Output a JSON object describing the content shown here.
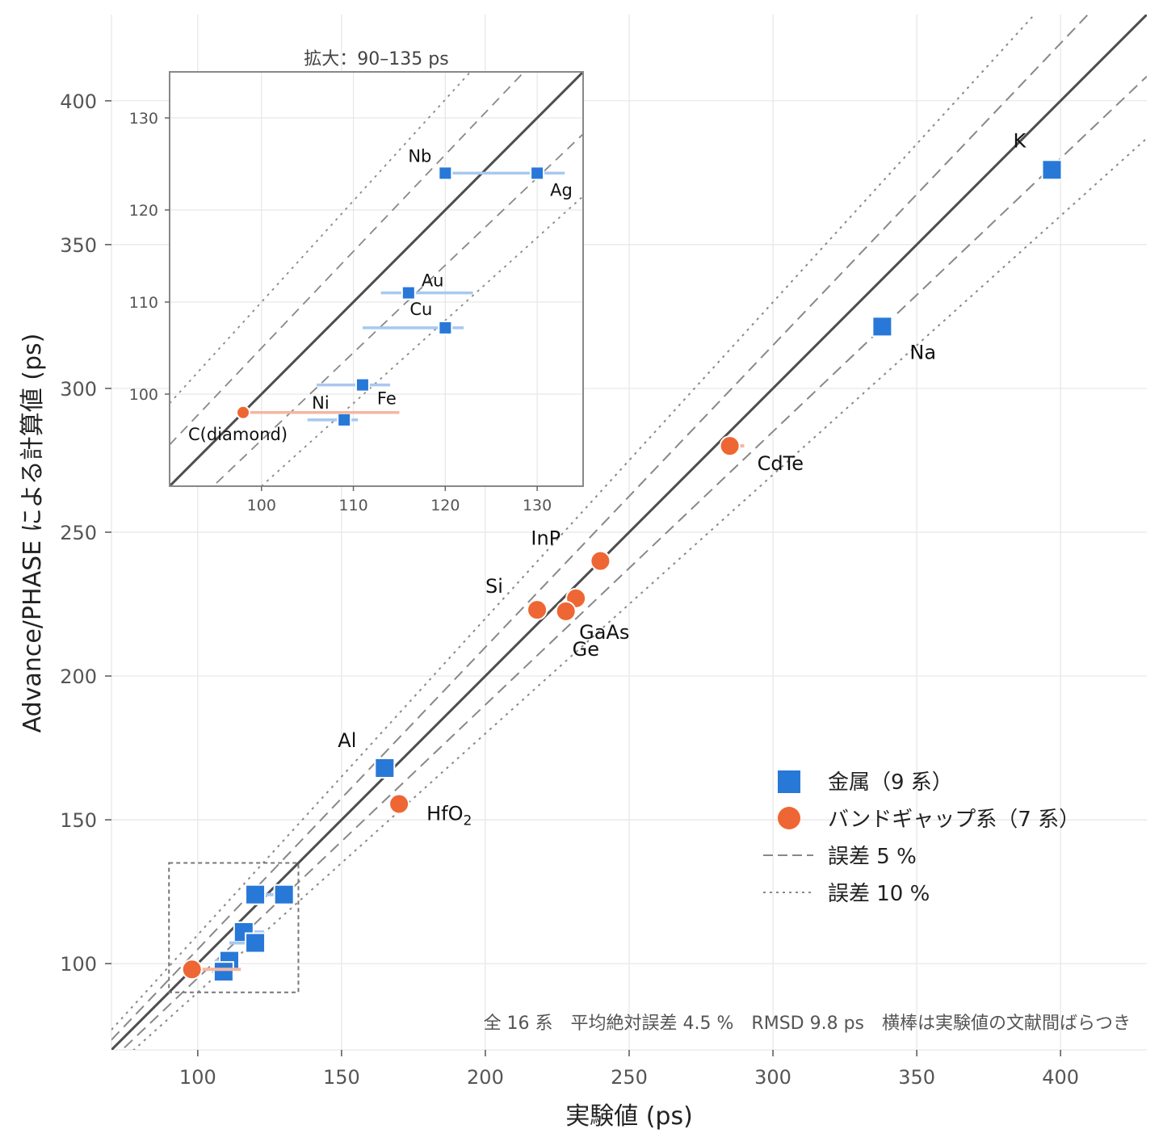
{
  "chart_data": {
    "type": "scatter",
    "xlabel": "実験値 (ps)",
    "ylabel": "Advance/PHASE による計算値 (ps)",
    "xlim": [
      70,
      430
    ],
    "ylim": [
      70,
      430
    ],
    "xticks": [
      100,
      150,
      200,
      250,
      300,
      350,
      400
    ],
    "yticks": [
      100,
      150,
      200,
      250,
      300,
      350,
      400
    ],
    "grid": true,
    "legend_position": "lower-right",
    "reference_lines": [
      {
        "name": "y = x",
        "ratio": 1.0,
        "style": "solid",
        "color": "#4d4d4d"
      },
      {
        "name": "誤差 5 %",
        "ratios": [
          0.95,
          1.05
        ],
        "style": "dashed",
        "color": "#888888"
      },
      {
        "name": "誤差 10 %",
        "ratios": [
          0.9,
          1.1
        ],
        "style": "dotted",
        "color": "#888888"
      }
    ],
    "series": [
      {
        "name": "金属（9 系）",
        "marker": "square",
        "color": "#2878d8",
        "errcolor": "#a8c8ef",
        "points": [
          {
            "label": "K",
            "x": 397,
            "y": 376,
            "xerr": [
              0,
              0
            ]
          },
          {
            "label": "Na",
            "x": 338,
            "y": 321.5,
            "xerr": [
              0,
              0
            ]
          },
          {
            "label": "Al",
            "x": 165,
            "y": 168,
            "xerr": [
              0,
              0
            ]
          },
          {
            "label": "Nb",
            "x": 120,
            "y": 124,
            "xerr": [
              0,
              5
            ]
          },
          {
            "label": "Ag",
            "x": 130,
            "y": 124,
            "xerr": [
              5,
              3
            ]
          },
          {
            "label": "Au",
            "x": 116,
            "y": 111,
            "xerr": [
              3,
              7
            ]
          },
          {
            "label": "Cu",
            "x": 120,
            "y": 107.2,
            "xerr": [
              9,
              2
            ]
          },
          {
            "label": "Fe",
            "x": 111,
            "y": 101,
            "xerr": [
              5,
              3
            ]
          },
          {
            "label": "Ni",
            "x": 109,
            "y": 97.2,
            "xerr": [
              4,
              1.5
            ]
          }
        ]
      },
      {
        "name": "バンドギャップ系（7 系）",
        "marker": "circle",
        "color": "#ee6633",
        "errcolor": "#f5b6a0",
        "points": [
          {
            "label": "CdTe",
            "x": 285,
            "y": 280,
            "xerr": [
              0,
              5
            ]
          },
          {
            "label": "InP",
            "x": 240,
            "y": 240,
            "xerr": [
              0,
              0
            ]
          },
          {
            "label": "GaAs",
            "x": 231.5,
            "y": 227,
            "xerr": [
              0,
              0
            ]
          },
          {
            "label": "Si",
            "x": 218,
            "y": 223,
            "xerr": [
              0,
              0
            ]
          },
          {
            "label": "Ge",
            "x": 228,
            "y": 222.5,
            "xerr": [
              0,
              0
            ]
          },
          {
            "label": "HfO",
            "label_sub": "2",
            "x": 170,
            "y": 155.5,
            "xerr": [
              0,
              0
            ]
          },
          {
            "label": "C(diamond)",
            "x": 98,
            "y": 98,
            "xerr": [
              0,
              17
            ]
          }
        ]
      }
    ],
    "inset": {
      "title": "拡大：90–135 ps",
      "xlim": [
        90,
        135
      ],
      "ylim": [
        90,
        135
      ],
      "xticks": [
        100,
        110,
        120,
        130
      ],
      "yticks": [
        100,
        110,
        120,
        130
      ]
    },
    "note": "全 16 系　平均絶対誤差 4.5 %　RMSD 9.8 ps　横棒は実験値の文献間ばらつき"
  },
  "legend": {
    "metal": "金属（9 系）",
    "bandgap": "バンドギャップ系（7 系）",
    "err5": "誤差 5 %",
    "err10": "誤差 10 %"
  }
}
